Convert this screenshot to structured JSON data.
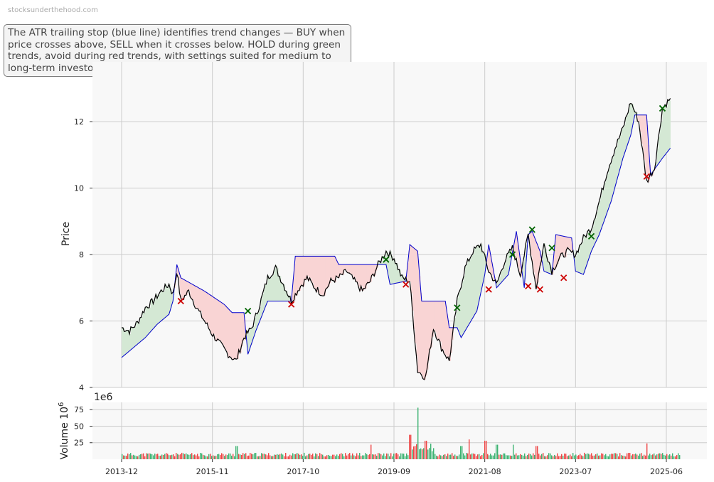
{
  "watermark": "stocksunderthehood.com",
  "annotation": "The ATR trailing stop (blue line) identifies trend changes — BUY when price crosses above, SELL when it crosses below. HOLD during green trends, avoid during red trends, with settings suited for medium to long-term investors.",
  "colors": {
    "price": "#000000",
    "stop": "#0000cc",
    "bull_fill": "#d4e8d4",
    "bear_fill": "#f9d4d4",
    "buy": "#006400",
    "sell": "#cc0000",
    "vol_up": "#3cb371",
    "vol_down": "#ee4444",
    "grid": "#cccccc",
    "panel": "#f8f8f8"
  },
  "chart_data": [
    {
      "type": "line",
      "ylabel": "Price",
      "ylim": [
        4,
        13.8
      ],
      "yticks": [
        4,
        6,
        8,
        10,
        12
      ],
      "x_ticks": [
        "2013-12",
        "2015-11",
        "2017-10",
        "2019-09",
        "2021-08",
        "2023-07",
        "2025-06"
      ],
      "x_range": [
        "2013-12",
        "2025-07"
      ],
      "grid": true,
      "series": [
        {
          "role": "price",
          "color": "#000000",
          "points": [
            [
              "2013-12",
              5.8
            ],
            [
              "2014-02",
              5.7
            ],
            [
              "2014-04",
              5.95
            ],
            [
              "2014-06",
              6.4
            ],
            [
              "2014-08",
              6.6
            ],
            [
              "2014-10",
              6.9
            ],
            [
              "2014-12",
              7.1
            ],
            [
              "2015-01",
              6.8
            ],
            [
              "2015-02",
              7.5
            ],
            [
              "2015-03",
              6.6
            ],
            [
              "2015-05",
              6.9
            ],
            [
              "2015-07",
              6.4
            ],
            [
              "2015-09",
              6.0
            ],
            [
              "2015-11",
              5.6
            ],
            [
              "2016-01",
              5.3
            ],
            [
              "2016-03",
              5.0
            ],
            [
              "2016-05",
              4.8
            ],
            [
              "2016-07",
              5.5
            ],
            [
              "2016-09",
              5.8
            ],
            [
              "2016-11",
              6.5
            ],
            [
              "2017-01",
              7.3
            ],
            [
              "2017-03",
              7.6
            ],
            [
              "2017-05",
              7.1
            ],
            [
              "2017-07",
              6.6
            ],
            [
              "2017-09",
              7.0
            ],
            [
              "2017-11",
              7.3
            ],
            [
              "2018-01",
              7.0
            ],
            [
              "2018-03",
              6.8
            ],
            [
              "2018-05",
              7.2
            ],
            [
              "2018-07",
              7.3
            ],
            [
              "2018-09",
              7.5
            ],
            [
              "2018-11",
              7.2
            ],
            [
              "2019-01",
              6.9
            ],
            [
              "2019-03",
              7.2
            ],
            [
              "2019-05",
              7.7
            ],
            [
              "2019-07",
              8.1
            ],
            [
              "2019-09",
              7.9
            ],
            [
              "2019-11",
              7.3
            ],
            [
              "2020-01",
              7.2
            ],
            [
              "2020-03",
              4.5
            ],
            [
              "2020-05",
              4.3
            ],
            [
              "2020-07",
              5.8
            ],
            [
              "2020-09",
              5.2
            ],
            [
              "2020-11",
              4.8
            ],
            [
              "2021-01",
              6.6
            ],
            [
              "2021-03",
              7.6
            ],
            [
              "2021-05",
              8.1
            ],
            [
              "2021-07",
              8.3
            ],
            [
              "2021-09",
              7.5
            ],
            [
              "2021-11",
              7.1
            ],
            [
              "2022-01",
              7.8
            ],
            [
              "2022-03",
              8.2
            ],
            [
              "2022-05",
              7.4
            ],
            [
              "2022-07",
              8.6
            ],
            [
              "2022-09",
              7.0
            ],
            [
              "2022-11",
              8.3
            ],
            [
              "2023-01",
              7.5
            ],
            [
              "2023-03",
              7.9
            ],
            [
              "2023-05",
              8.1
            ],
            [
              "2023-07",
              8.0
            ],
            [
              "2023-09",
              8.5
            ],
            [
              "2023-11",
              8.8
            ],
            [
              "2024-01",
              9.6
            ],
            [
              "2024-03",
              10.5
            ],
            [
              "2024-05",
              11.2
            ],
            [
              "2024-07",
              11.8
            ],
            [
              "2024-09",
              12.6
            ],
            [
              "2024-11",
              12.0
            ],
            [
              "2025-01",
              10.2
            ],
            [
              "2025-03",
              10.6
            ],
            [
              "2025-05",
              12.4
            ],
            [
              "2025-07",
              12.7
            ]
          ]
        },
        {
          "role": "atr_trailing_stop",
          "color": "#0000cc",
          "points": [
            [
              "2013-12",
              4.9
            ],
            [
              "2014-02",
              5.1
            ],
            [
              "2014-06",
              5.5
            ],
            [
              "2014-09",
              5.9
            ],
            [
              "2014-12",
              6.2
            ],
            [
              "2015-01",
              6.6
            ],
            [
              "2015-02",
              7.7
            ],
            [
              "2015-03",
              7.3
            ],
            [
              "2015-06",
              7.1
            ],
            [
              "2015-09",
              6.9
            ],
            [
              "2016-02",
              6.5
            ],
            [
              "2016-04",
              6.25
            ],
            [
              "2016-07",
              6.25
            ],
            [
              "2016-08",
              5.0
            ],
            [
              "2016-10",
              5.7
            ],
            [
              "2017-01",
              6.6
            ],
            [
              "2017-07",
              6.6
            ],
            [
              "2017-08",
              7.95
            ],
            [
              "2018-06",
              7.95
            ],
            [
              "2018-07",
              7.7
            ],
            [
              "2019-07",
              7.7
            ],
            [
              "2019-08",
              7.1
            ],
            [
              "2019-12",
              7.2
            ],
            [
              "2020-01",
              8.3
            ],
            [
              "2020-03",
              8.1
            ],
            [
              "2020-04",
              6.6
            ],
            [
              "2020-10",
              6.6
            ],
            [
              "2020-11",
              5.8
            ],
            [
              "2021-01",
              5.8
            ],
            [
              "2021-02",
              5.5
            ],
            [
              "2021-06",
              6.3
            ],
            [
              "2021-08",
              7.4
            ],
            [
              "2021-09",
              8.3
            ],
            [
              "2021-11",
              7.0
            ],
            [
              "2022-02",
              7.4
            ],
            [
              "2022-04",
              8.7
            ],
            [
              "2022-06",
              7.0
            ],
            [
              "2022-07",
              8.6
            ],
            [
              "2022-08",
              8.7
            ],
            [
              "2022-10",
              8.1
            ],
            [
              "2022-11",
              7.5
            ],
            [
              "2023-01",
              7.4
            ],
            [
              "2023-02",
              8.6
            ],
            [
              "2023-06",
              8.5
            ],
            [
              "2023-07",
              7.5
            ],
            [
              "2023-09",
              7.4
            ],
            [
              "2023-11",
              8.1
            ],
            [
              "2024-01",
              8.6
            ],
            [
              "2024-04",
              9.6
            ],
            [
              "2024-07",
              10.9
            ],
            [
              "2024-09",
              11.6
            ],
            [
              "2024-10",
              12.2
            ],
            [
              "2025-01",
              12.2
            ],
            [
              "2025-02",
              10.4
            ],
            [
              "2025-05",
              10.9
            ],
            [
              "2025-07",
              11.2
            ]
          ]
        }
      ],
      "signals": [
        {
          "type": "sell",
          "date": "2015-03",
          "price": 6.6
        },
        {
          "type": "buy",
          "date": "2016-08",
          "price": 6.3
        },
        {
          "type": "sell",
          "date": "2017-07",
          "price": 6.5
        },
        {
          "type": "buy",
          "date": "2019-07",
          "price": 7.85
        },
        {
          "type": "sell",
          "date": "2019-12",
          "price": 7.1
        },
        {
          "type": "buy",
          "date": "2021-01",
          "price": 6.4
        },
        {
          "type": "sell",
          "date": "2021-09",
          "price": 6.95
        },
        {
          "type": "buy",
          "date": "2022-03",
          "price": 8.0
        },
        {
          "type": "sell",
          "date": "2022-07",
          "price": 7.05
        },
        {
          "type": "buy",
          "date": "2022-08",
          "price": 8.75
        },
        {
          "type": "sell",
          "date": "2022-10",
          "price": 6.95
        },
        {
          "type": "buy",
          "date": "2023-01",
          "price": 8.2
        },
        {
          "type": "sell",
          "date": "2023-04",
          "price": 7.3
        },
        {
          "type": "buy",
          "date": "2023-11",
          "price": 8.55
        },
        {
          "type": "sell",
          "date": "2025-01",
          "price": 10.35
        },
        {
          "type": "buy",
          "date": "2025-05",
          "price": 12.4
        }
      ]
    },
    {
      "type": "bar",
      "ylabel": "Volume",
      "ylabel_unit": "10",
      "ylabel_exp": "6",
      "offset_label": "1e6",
      "ylim": [
        0,
        86
      ],
      "yticks": [
        25,
        50,
        75
      ],
      "grid": true,
      "base_level": 7,
      "spikes": [
        {
          "date": "2016-05",
          "value": 20,
          "dir": "up"
        },
        {
          "date": "2019-03",
          "value": 22,
          "dir": "down"
        },
        {
          "date": "2020-01",
          "value": 37,
          "dir": "down"
        },
        {
          "date": "2020-03",
          "value": 78,
          "dir": "up"
        },
        {
          "date": "2020-05",
          "value": 28,
          "dir": "down"
        },
        {
          "date": "2021-02",
          "value": 20,
          "dir": "up"
        },
        {
          "date": "2021-04",
          "value": 30,
          "dir": "down"
        },
        {
          "date": "2021-08",
          "value": 28,
          "dir": "down"
        },
        {
          "date": "2021-11",
          "value": 22,
          "dir": "up"
        },
        {
          "date": "2022-03",
          "value": 22,
          "dir": "up"
        },
        {
          "date": "2022-09",
          "value": 20,
          "dir": "down"
        },
        {
          "date": "2025-01",
          "value": 24,
          "dir": "down"
        }
      ]
    }
  ]
}
